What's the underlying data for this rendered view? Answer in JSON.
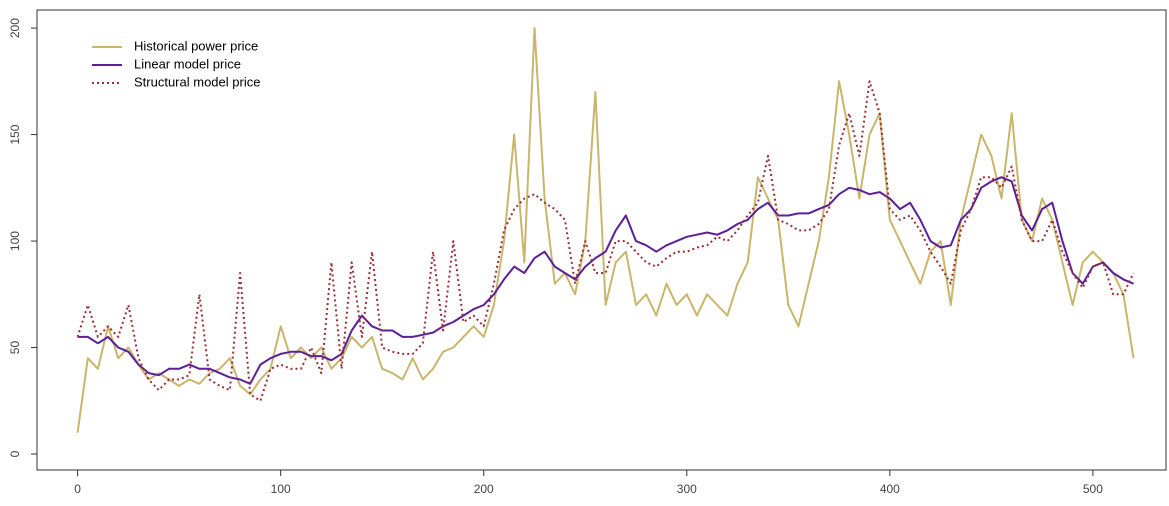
{
  "chart_data": {
    "type": "line",
    "x": [
      0,
      5,
      10,
      15,
      20,
      25,
      30,
      35,
      40,
      45,
      50,
      55,
      60,
      65,
      70,
      75,
      80,
      85,
      90,
      95,
      100,
      105,
      110,
      115,
      120,
      125,
      130,
      135,
      140,
      145,
      150,
      155,
      160,
      165,
      170,
      175,
      180,
      185,
      190,
      195,
      200,
      205,
      210,
      215,
      220,
      225,
      230,
      235,
      240,
      245,
      250,
      255,
      260,
      265,
      270,
      275,
      280,
      285,
      290,
      295,
      300,
      305,
      310,
      315,
      320,
      325,
      330,
      335,
      340,
      345,
      350,
      355,
      360,
      365,
      370,
      375,
      380,
      385,
      390,
      395,
      400,
      405,
      410,
      415,
      420,
      425,
      430,
      435,
      440,
      445,
      450,
      455,
      460,
      465,
      470,
      475,
      480,
      485,
      490,
      495,
      500,
      505,
      510,
      515,
      520
    ],
    "series": [
      {
        "name": "Historical power price",
        "color": "#c9b56c",
        "dash": "none",
        "values": [
          10,
          45,
          40,
          60,
          45,
          50,
          42,
          35,
          38,
          35,
          32,
          35,
          33,
          38,
          40,
          45,
          32,
          28,
          35,
          40,
          60,
          45,
          50,
          45,
          50,
          40,
          45,
          55,
          50,
          55,
          40,
          38,
          35,
          45,
          35,
          40,
          48,
          50,
          55,
          60,
          55,
          70,
          100,
          150,
          90,
          200,
          120,
          80,
          85,
          75,
          100,
          170,
          70,
          90,
          95,
          70,
          75,
          65,
          80,
          70,
          75,
          65,
          75,
          70,
          65,
          80,
          90,
          130,
          120,
          110,
          70,
          60,
          80,
          100,
          130,
          175,
          150,
          120,
          150,
          160,
          110,
          100,
          90,
          80,
          95,
          100,
          70,
          110,
          130,
          150,
          140,
          120,
          160,
          110,
          100,
          120,
          110,
          90,
          70,
          90,
          95,
          90,
          85,
          75,
          45
        ]
      },
      {
        "name": "Linear model price",
        "color": "#5b1f9a",
        "dash": "none",
        "values": [
          55,
          55,
          52,
          55,
          50,
          48,
          42,
          38,
          37,
          40,
          40,
          42,
          40,
          40,
          38,
          36,
          35,
          33,
          42,
          45,
          47,
          48,
          48,
          46,
          46,
          44,
          47,
          58,
          65,
          60,
          58,
          58,
          55,
          55,
          56,
          57,
          60,
          62,
          65,
          68,
          70,
          75,
          82,
          88,
          85,
          92,
          95,
          88,
          85,
          82,
          88,
          92,
          95,
          105,
          112,
          100,
          98,
          95,
          98,
          100,
          102,
          103,
          104,
          103,
          105,
          108,
          110,
          115,
          118,
          112,
          112,
          113,
          113,
          115,
          117,
          122,
          125,
          124,
          122,
          123,
          120,
          115,
          118,
          110,
          100,
          97,
          98,
          110,
          115,
          125,
          128,
          130,
          128,
          112,
          105,
          115,
          118,
          100,
          85,
          80,
          88,
          90,
          85,
          82,
          80
        ]
      },
      {
        "name": "Structural model price",
        "color": "#9b2d35",
        "dash": "2 3",
        "values": [
          55,
          70,
          55,
          60,
          55,
          70,
          45,
          35,
          30,
          35,
          35,
          37,
          75,
          35,
          32,
          30,
          85,
          28,
          25,
          40,
          42,
          40,
          40,
          50,
          38,
          90,
          40,
          90,
          55,
          95,
          50,
          48,
          47,
          47,
          52,
          95,
          58,
          100,
          62,
          65,
          60,
          80,
          105,
          115,
          120,
          122,
          118,
          115,
          110,
          80,
          100,
          85,
          85,
          100,
          100,
          95,
          90,
          88,
          92,
          95,
          95,
          97,
          98,
          102,
          100,
          105,
          112,
          118,
          140,
          110,
          108,
          105,
          105,
          108,
          115,
          145,
          160,
          140,
          175,
          160,
          115,
          110,
          112,
          105,
          95,
          88,
          80,
          105,
          115,
          130,
          130,
          125,
          135,
          110,
          100,
          100,
          110,
          95,
          85,
          78,
          88,
          90,
          75,
          75,
          85
        ]
      }
    ],
    "xlim": [
      -20,
      536
    ],
    "ylim": [
      -7.5,
      208.5
    ],
    "xticks": [
      0,
      100,
      200,
      300,
      400,
      500
    ],
    "yticks": [
      0,
      50,
      100,
      150,
      200
    ],
    "grid": false,
    "legend": "top-left"
  }
}
